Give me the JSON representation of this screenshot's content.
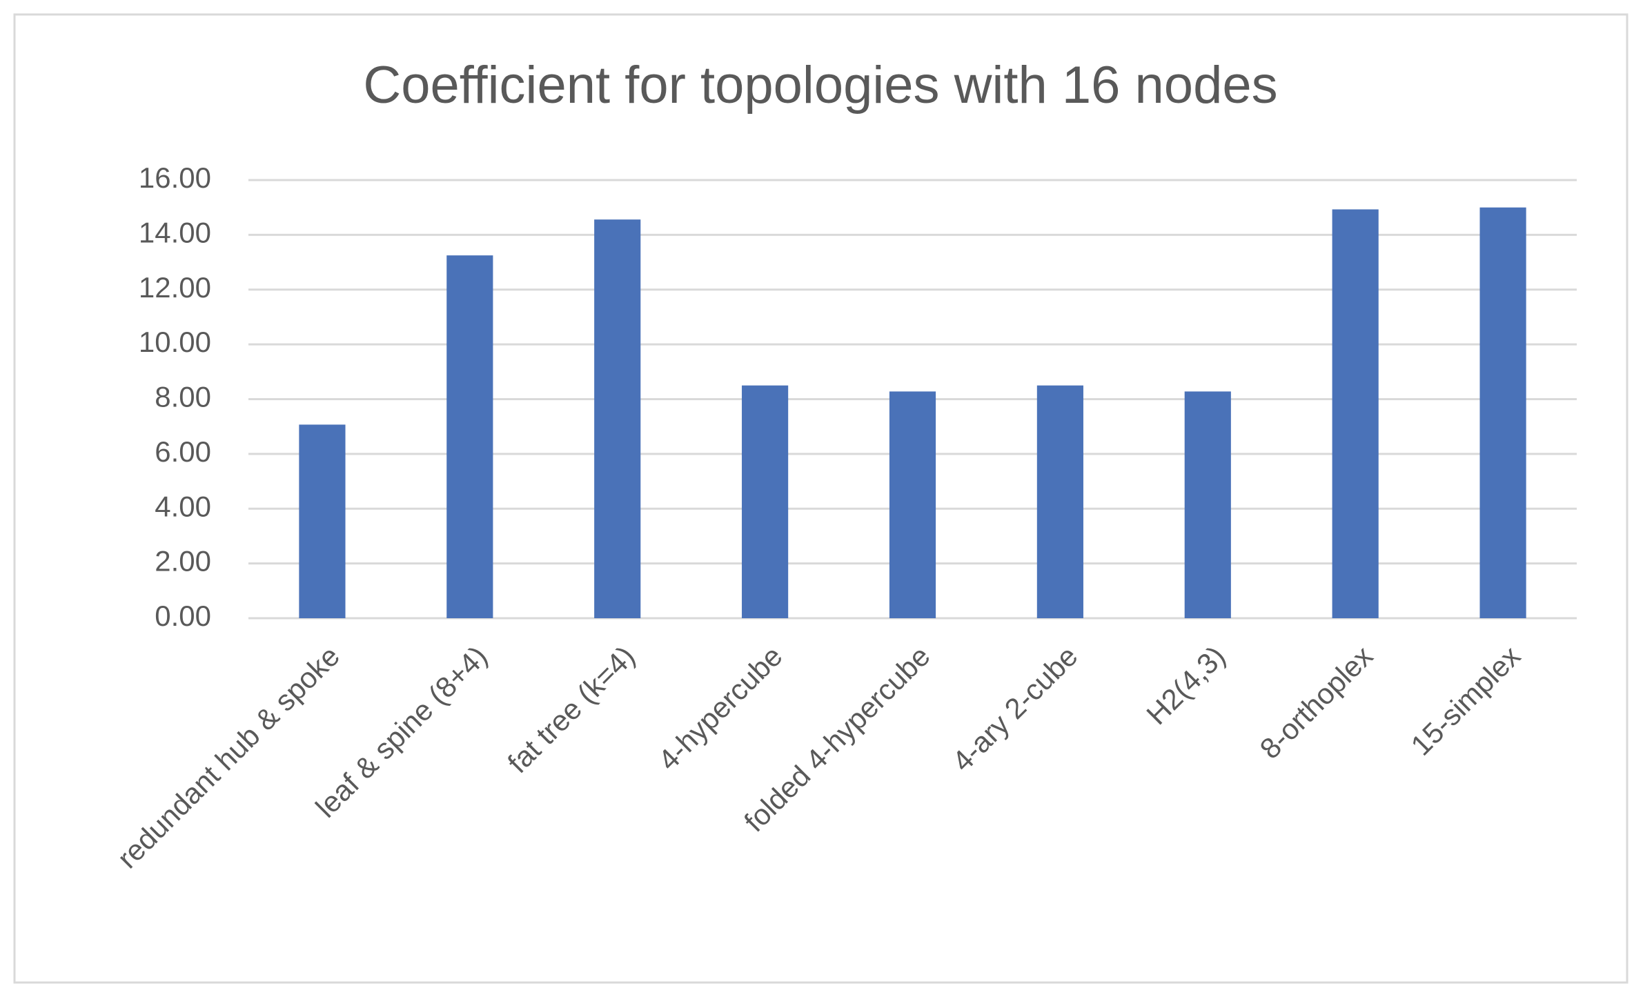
{
  "chart_data": {
    "type": "bar",
    "title": "Coefficient for topologies with 16 nodes",
    "categories": [
      "redundant hub & spoke",
      "leaf & spine (8+4)",
      "fat tree (k=4)",
      "4-hypercube",
      "folded 4-hypercube",
      "4-ary 2-cube",
      "H2(4,3)",
      "8-orthoplex",
      "15-simplex"
    ],
    "values": [
      7.07,
      13.25,
      14.56,
      8.5,
      8.28,
      8.5,
      8.28,
      14.93,
      15
    ],
    "color": "#4a72b8",
    "ylim": [
      0,
      16
    ],
    "yticks": [
      {
        "value": 0,
        "label": "0.00"
      },
      {
        "value": 2,
        "label": "2.00"
      },
      {
        "value": 4,
        "label": "4.00"
      },
      {
        "value": 6,
        "label": "6.00"
      },
      {
        "value": 8,
        "label": "8.00"
      },
      {
        "value": 10,
        "label": "10.00"
      },
      {
        "value": 12,
        "label": "12.00"
      },
      {
        "value": 14,
        "label": "14.00"
      },
      {
        "value": 16,
        "label": "16.00"
      }
    ],
    "grid": true
  }
}
